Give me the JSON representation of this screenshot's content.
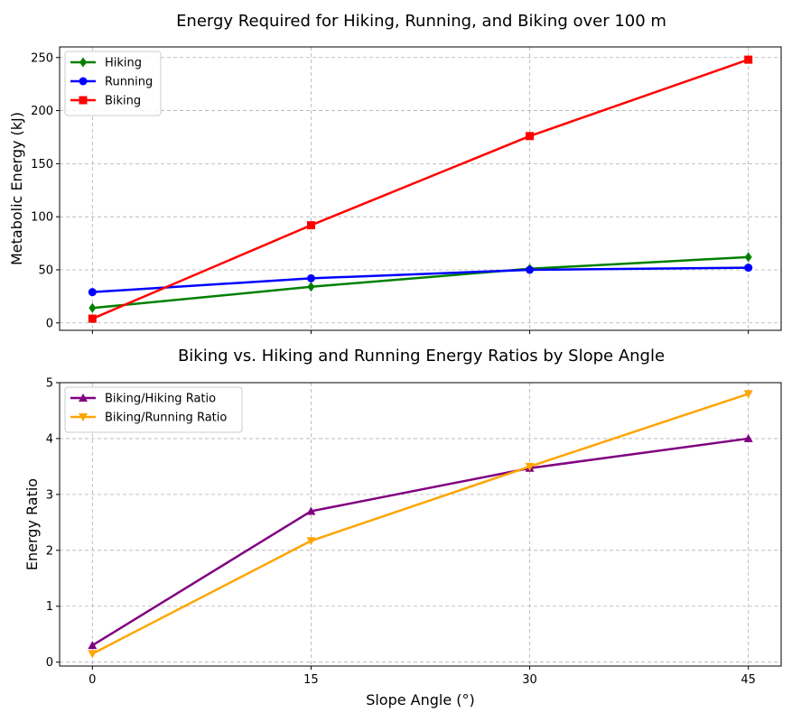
{
  "chart_data": [
    {
      "type": "line",
      "title": "Energy Required for Hiking, Running, and Biking over 100 m",
      "xlabel": "",
      "ylabel": "Metabolic Energy (kJ)",
      "x": [
        0,
        15,
        30,
        45
      ],
      "xticks": [
        0,
        15,
        30,
        45
      ],
      "show_xtick_labels": false,
      "xlim": [
        -2.25,
        47.25
      ],
      "ylim": [
        -7,
        260
      ],
      "yticks": [
        0,
        50,
        100,
        150,
        200,
        250
      ],
      "grid": true,
      "legend_position": "top-left",
      "series": [
        {
          "name": "Hiking",
          "values": [
            14,
            34,
            51,
            62
          ],
          "color": "#008000",
          "marker": "diamond"
        },
        {
          "name": "Running",
          "values": [
            29,
            42,
            50,
            52
          ],
          "color": "#0000ff",
          "marker": "circle"
        },
        {
          "name": "Biking",
          "values": [
            4,
            92,
            176,
            248
          ],
          "color": "#ff0000",
          "marker": "square"
        }
      ]
    },
    {
      "type": "line",
      "title": "Biking vs. Hiking and Running Energy Ratios by Slope Angle",
      "xlabel": "Slope Angle (°)",
      "ylabel": "Energy Ratio",
      "x": [
        0,
        15,
        30,
        45
      ],
      "xticks": [
        0,
        15,
        30,
        45
      ],
      "show_xtick_labels": true,
      "xlim": [
        -2.25,
        47.25
      ],
      "ylim": [
        -0.07,
        5.0
      ],
      "yticks": [
        0,
        1,
        2,
        3,
        4,
        5
      ],
      "grid": true,
      "legend_position": "top-left",
      "series": [
        {
          "name": "Biking/Hiking Ratio",
          "values": [
            0.3,
            2.7,
            3.47,
            4.0
          ],
          "color": "#800080",
          "marker": "triangle-up"
        },
        {
          "name": "Biking/Running Ratio",
          "values": [
            0.15,
            2.17,
            3.5,
            4.8
          ],
          "color": "#ffa500",
          "marker": "triangle-down"
        }
      ]
    }
  ]
}
